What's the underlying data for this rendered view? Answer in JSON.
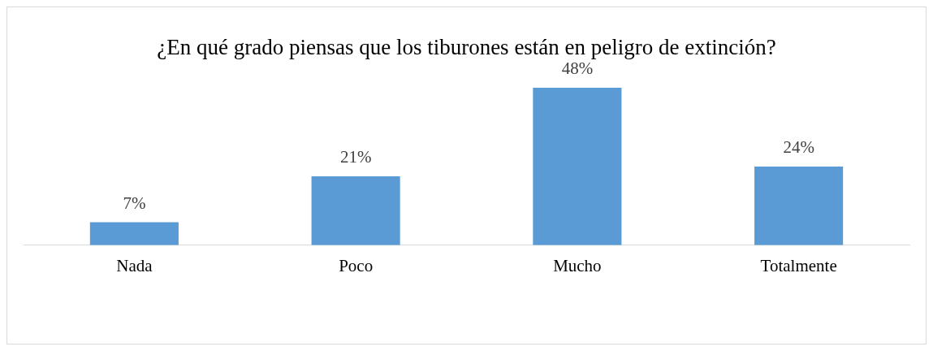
{
  "chart_data": {
    "type": "bar",
    "title": "¿En qué grado piensas que los tiburones están en peligro de extinción?",
    "categories": [
      "Nada",
      "Poco",
      "Mucho",
      "Totalmente"
    ],
    "values": [
      7,
      21,
      48,
      24
    ],
    "value_labels": [
      "7%",
      "21%",
      "48%",
      "24%"
    ],
    "color": "#5b9bd5",
    "grid": false,
    "legend": false
  }
}
